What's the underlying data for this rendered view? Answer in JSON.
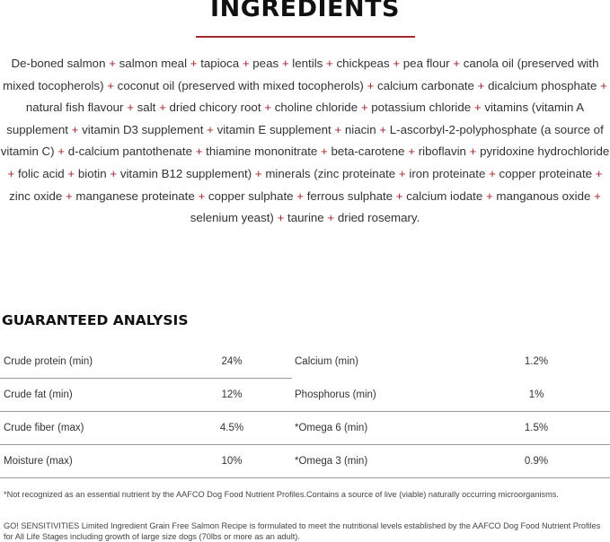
{
  "ingredients": {
    "title": "INGREDIENTS",
    "separator": "+",
    "items": [
      "De-boned salmon",
      "salmon meal",
      "tapioca",
      "peas",
      "lentils",
      "chickpeas",
      "pea flour",
      "canola oil (preserved with mixed tocopherols)",
      "coconut oil (preserved with mixed tocopherols)",
      "calcium carbonate",
      "dicalcium phosphate",
      "natural fish flavour",
      "salt",
      "dried chicory root",
      "choline chloride",
      "potassium chloride",
      "vitamins (vitamin A supplement",
      "vitamin D3 supplement",
      "vitamin E supplement",
      "niacin",
      "L-ascorbyl-2-polyphosphate (a source of vitamin C)",
      "d-calcium pantothenate",
      "thiamine mononitrate",
      "beta-carotene",
      "riboflavin",
      "pyridoxine hydrochloride",
      "folic acid",
      "biotin",
      "vitamin B12 supplement)",
      "minerals (zinc proteinate",
      "iron proteinate",
      "copper proteinate",
      "zinc oxide",
      "manganese proteinate",
      "copper sulphate",
      "ferrous sulphate",
      "calcium iodate",
      "manganous oxide",
      "selenium yeast)",
      "taurine",
      "dried rosemary."
    ]
  },
  "analysis": {
    "title": "GUARANTEED ANALYSIS",
    "rows": [
      {
        "label1": "Crude protein (min)",
        "value1": "24%",
        "label2": "Calcium (min)",
        "value2": "1.2%"
      },
      {
        "label1": "Crude fat (min)",
        "value1": "12%",
        "label2": "Phosphorus (min)",
        "value2": "1%"
      },
      {
        "label1": "Crude fiber (max)",
        "value1": "4.5%",
        "label2": "*Omega 6 (min)",
        "value2": "1.5%"
      },
      {
        "label1": "Moisture (max)",
        "value1": "10%",
        "label2": "*Omega 3 (min)",
        "value2": "0.9%"
      }
    ],
    "footnote": "*Not recognized as an essential nutrient by the AAFCO Dog Food Nutrient Profiles.Contains a source of live (viable) naturally occurring microorganisms.",
    "statement": "GO! SENSITIVITIES Limited Ingredient Grain Free Salmon Recipe is formulated to meet the nutritional levels established by the AAFCO Dog Food Nutrient Profiles for All Life Stages including growth of large size dogs (70lbs or more as an adult)."
  },
  "colors": {
    "accent": "#a3272f",
    "text": "#333333"
  }
}
